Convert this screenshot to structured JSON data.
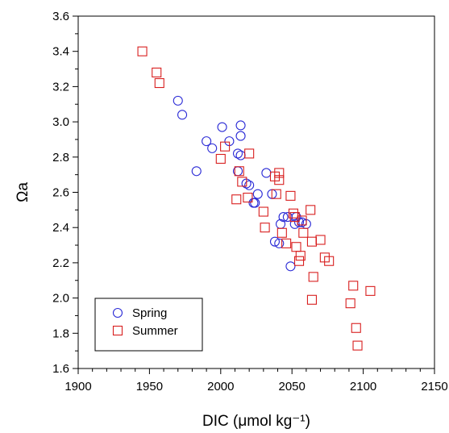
{
  "chart_data": {
    "type": "scatter",
    "title": "",
    "xlabel": "DIC (μmol kg⁻¹)",
    "ylabel": "Ωa",
    "xlim": [
      1900,
      2150
    ],
    "ylim": [
      1.6,
      3.6
    ],
    "x_ticks": [
      "1900",
      "1950",
      "2000",
      "2050",
      "2100",
      "2150"
    ],
    "y_ticks": [
      "1.6",
      "1.8",
      "2.0",
      "2.2",
      "2.4",
      "2.6",
      "2.8",
      "3.0",
      "3.2",
      "3.4",
      "3.6"
    ],
    "grid": false,
    "legend_position": "bottom-left",
    "colors": {
      "spring": "#2b2bd6",
      "summer": "#d81e1e"
    },
    "series": [
      {
        "name": "Spring",
        "marker": "circle",
        "points": [
          [
            1970,
            3.12
          ],
          [
            1973,
            3.04
          ],
          [
            1983,
            2.72
          ],
          [
            1990,
            2.89
          ],
          [
            1994,
            2.85
          ],
          [
            2001,
            2.97
          ],
          [
            2006,
            2.89
          ],
          [
            2012,
            2.82
          ],
          [
            2012,
            2.72
          ],
          [
            2014,
            2.98
          ],
          [
            2014,
            2.92
          ],
          [
            2014,
            2.81
          ],
          [
            2018,
            2.65
          ],
          [
            2020,
            2.64
          ],
          [
            2023,
            2.54
          ],
          [
            2024,
            2.54
          ],
          [
            2026,
            2.59
          ],
          [
            2032,
            2.71
          ],
          [
            2036,
            2.59
          ],
          [
            2038,
            2.32
          ],
          [
            2041,
            2.31
          ],
          [
            2042,
            2.42
          ],
          [
            2044,
            2.46
          ],
          [
            2047,
            2.46
          ],
          [
            2049,
            2.18
          ],
          [
            2052,
            2.42
          ],
          [
            2053,
            2.46
          ],
          [
            2055,
            2.43
          ],
          [
            2057,
            2.43
          ],
          [
            2060,
            2.42
          ]
        ]
      },
      {
        "name": "Summer",
        "marker": "square",
        "points": [
          [
            1945,
            3.4
          ],
          [
            1955,
            3.28
          ],
          [
            1957,
            3.22
          ],
          [
            2000,
            2.79
          ],
          [
            2003,
            2.86
          ],
          [
            2011,
            2.56
          ],
          [
            2013,
            2.72
          ],
          [
            2015,
            2.66
          ],
          [
            2019,
            2.57
          ],
          [
            2020,
            2.82
          ],
          [
            2030,
            2.49
          ],
          [
            2031,
            2.4
          ],
          [
            2038,
            2.69
          ],
          [
            2039,
            2.59
          ],
          [
            2041,
            2.71
          ],
          [
            2041,
            2.67
          ],
          [
            2043,
            2.37
          ],
          [
            2046,
            2.31
          ],
          [
            2049,
            2.58
          ],
          [
            2051,
            2.48
          ],
          [
            2052,
            2.46
          ],
          [
            2053,
            2.29
          ],
          [
            2055,
            2.21
          ],
          [
            2056,
            2.24
          ],
          [
            2057,
            2.44
          ],
          [
            2058,
            2.37
          ],
          [
            2063,
            2.5
          ],
          [
            2064,
            2.32
          ],
          [
            2064,
            1.99
          ],
          [
            2065,
            2.12
          ],
          [
            2070,
            2.33
          ],
          [
            2073,
            2.23
          ],
          [
            2076,
            2.21
          ],
          [
            2091,
            1.97
          ],
          [
            2093,
            2.07
          ],
          [
            2095,
            1.83
          ],
          [
            2096,
            1.73
          ],
          [
            2105,
            2.04
          ]
        ]
      }
    ]
  }
}
